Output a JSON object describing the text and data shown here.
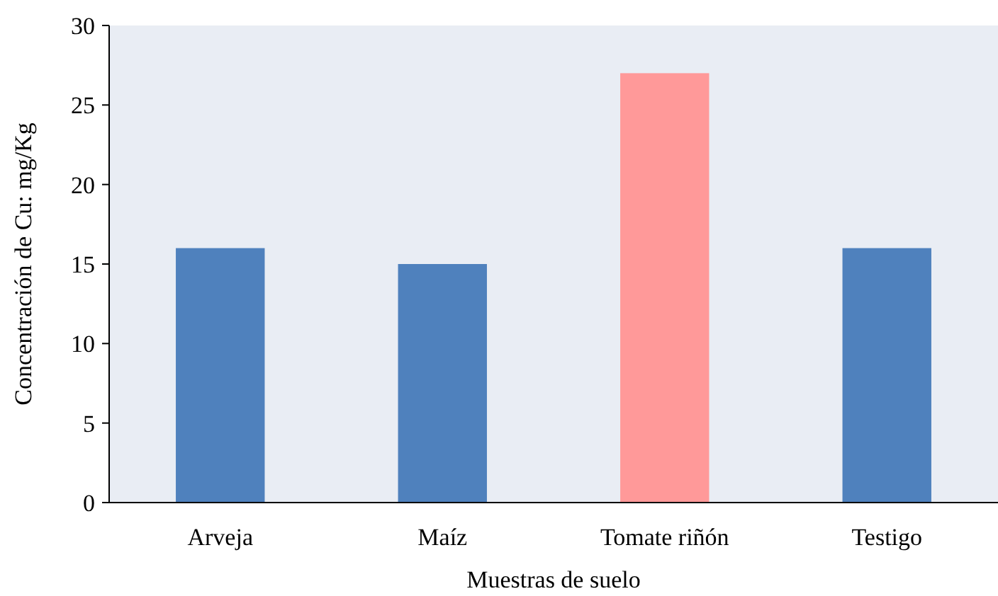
{
  "chart_data": {
    "type": "bar",
    "xlabel": "Muestras de suelo",
    "ylabel": "Concentración de Cu: mg/Kg",
    "categories": [
      "Arveja",
      "Maíz",
      "Tomate riñón",
      "Testigo"
    ],
    "values": [
      16,
      15,
      27,
      16
    ],
    "colors": [
      "#4f81bd",
      "#4f81bd",
      "#ff9999",
      "#4f81bd"
    ],
    "ylim": [
      0,
      30
    ],
    "yticks": [
      0,
      5,
      10,
      15,
      20,
      25,
      30
    ],
    "grid": false
  }
}
